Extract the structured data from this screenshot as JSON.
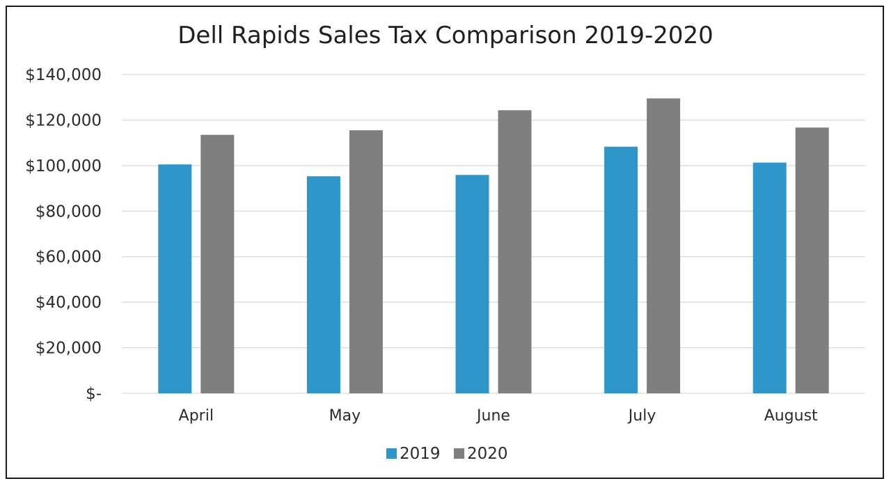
{
  "chart_data": {
    "type": "bar",
    "title": "Dell Rapids Sales Tax Comparison 2019-2020",
    "xlabel": "",
    "ylabel": "",
    "categories": [
      "April",
      "May",
      "June",
      "July",
      "August"
    ],
    "series": [
      {
        "name": "2019",
        "color": "#2e96c8",
        "values": [
          100500,
          95300,
          95900,
          108300,
          101300
        ]
      },
      {
        "name": "2020",
        "color": "#7f7f7f",
        "values": [
          113500,
          115500,
          124300,
          129500,
          116700
        ]
      }
    ],
    "ylim": [
      0,
      140000
    ],
    "yticks": [
      {
        "value": 0,
        "label": "$-"
      },
      {
        "value": 20000,
        "label": "$20,000"
      },
      {
        "value": 40000,
        "label": "$40,000"
      },
      {
        "value": 60000,
        "label": "$60,000"
      },
      {
        "value": 80000,
        "label": "$80,000"
      },
      {
        "value": 100000,
        "label": "$100,000"
      },
      {
        "value": 120000,
        "label": "$120,000"
      },
      {
        "value": 140000,
        "label": "$140,000"
      }
    ],
    "grid": true,
    "legend": "bottom"
  }
}
